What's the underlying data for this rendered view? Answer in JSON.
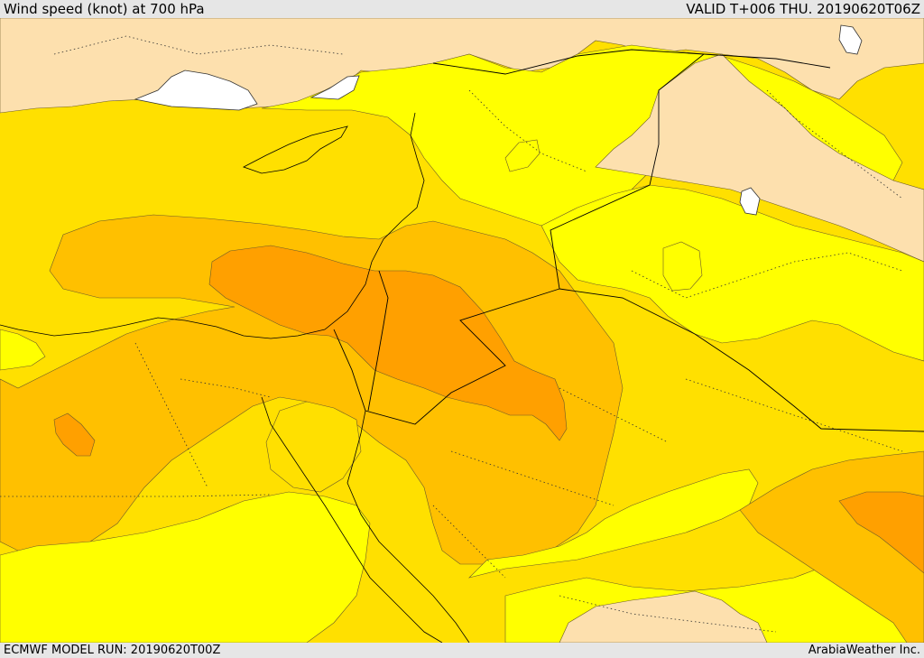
{
  "header": {
    "title": "Wind speed (knot) at 700 hPa",
    "valid": "VALID T+006 THU. 20190620T06Z"
  },
  "footer": {
    "model_run": "ECMWF MODEL RUN: 20190620T00Z",
    "credit": "ArabiaWeather Inc."
  },
  "colors": {
    "peach": "#fde0ae",
    "yellow": "#ffff00",
    "yellow_gold": "#ffe000",
    "gold": "#ffc000",
    "amber": "#ffb000",
    "orange": "#ffa000",
    "sea_white": "#ffffff",
    "coastline": "#000000"
  }
}
